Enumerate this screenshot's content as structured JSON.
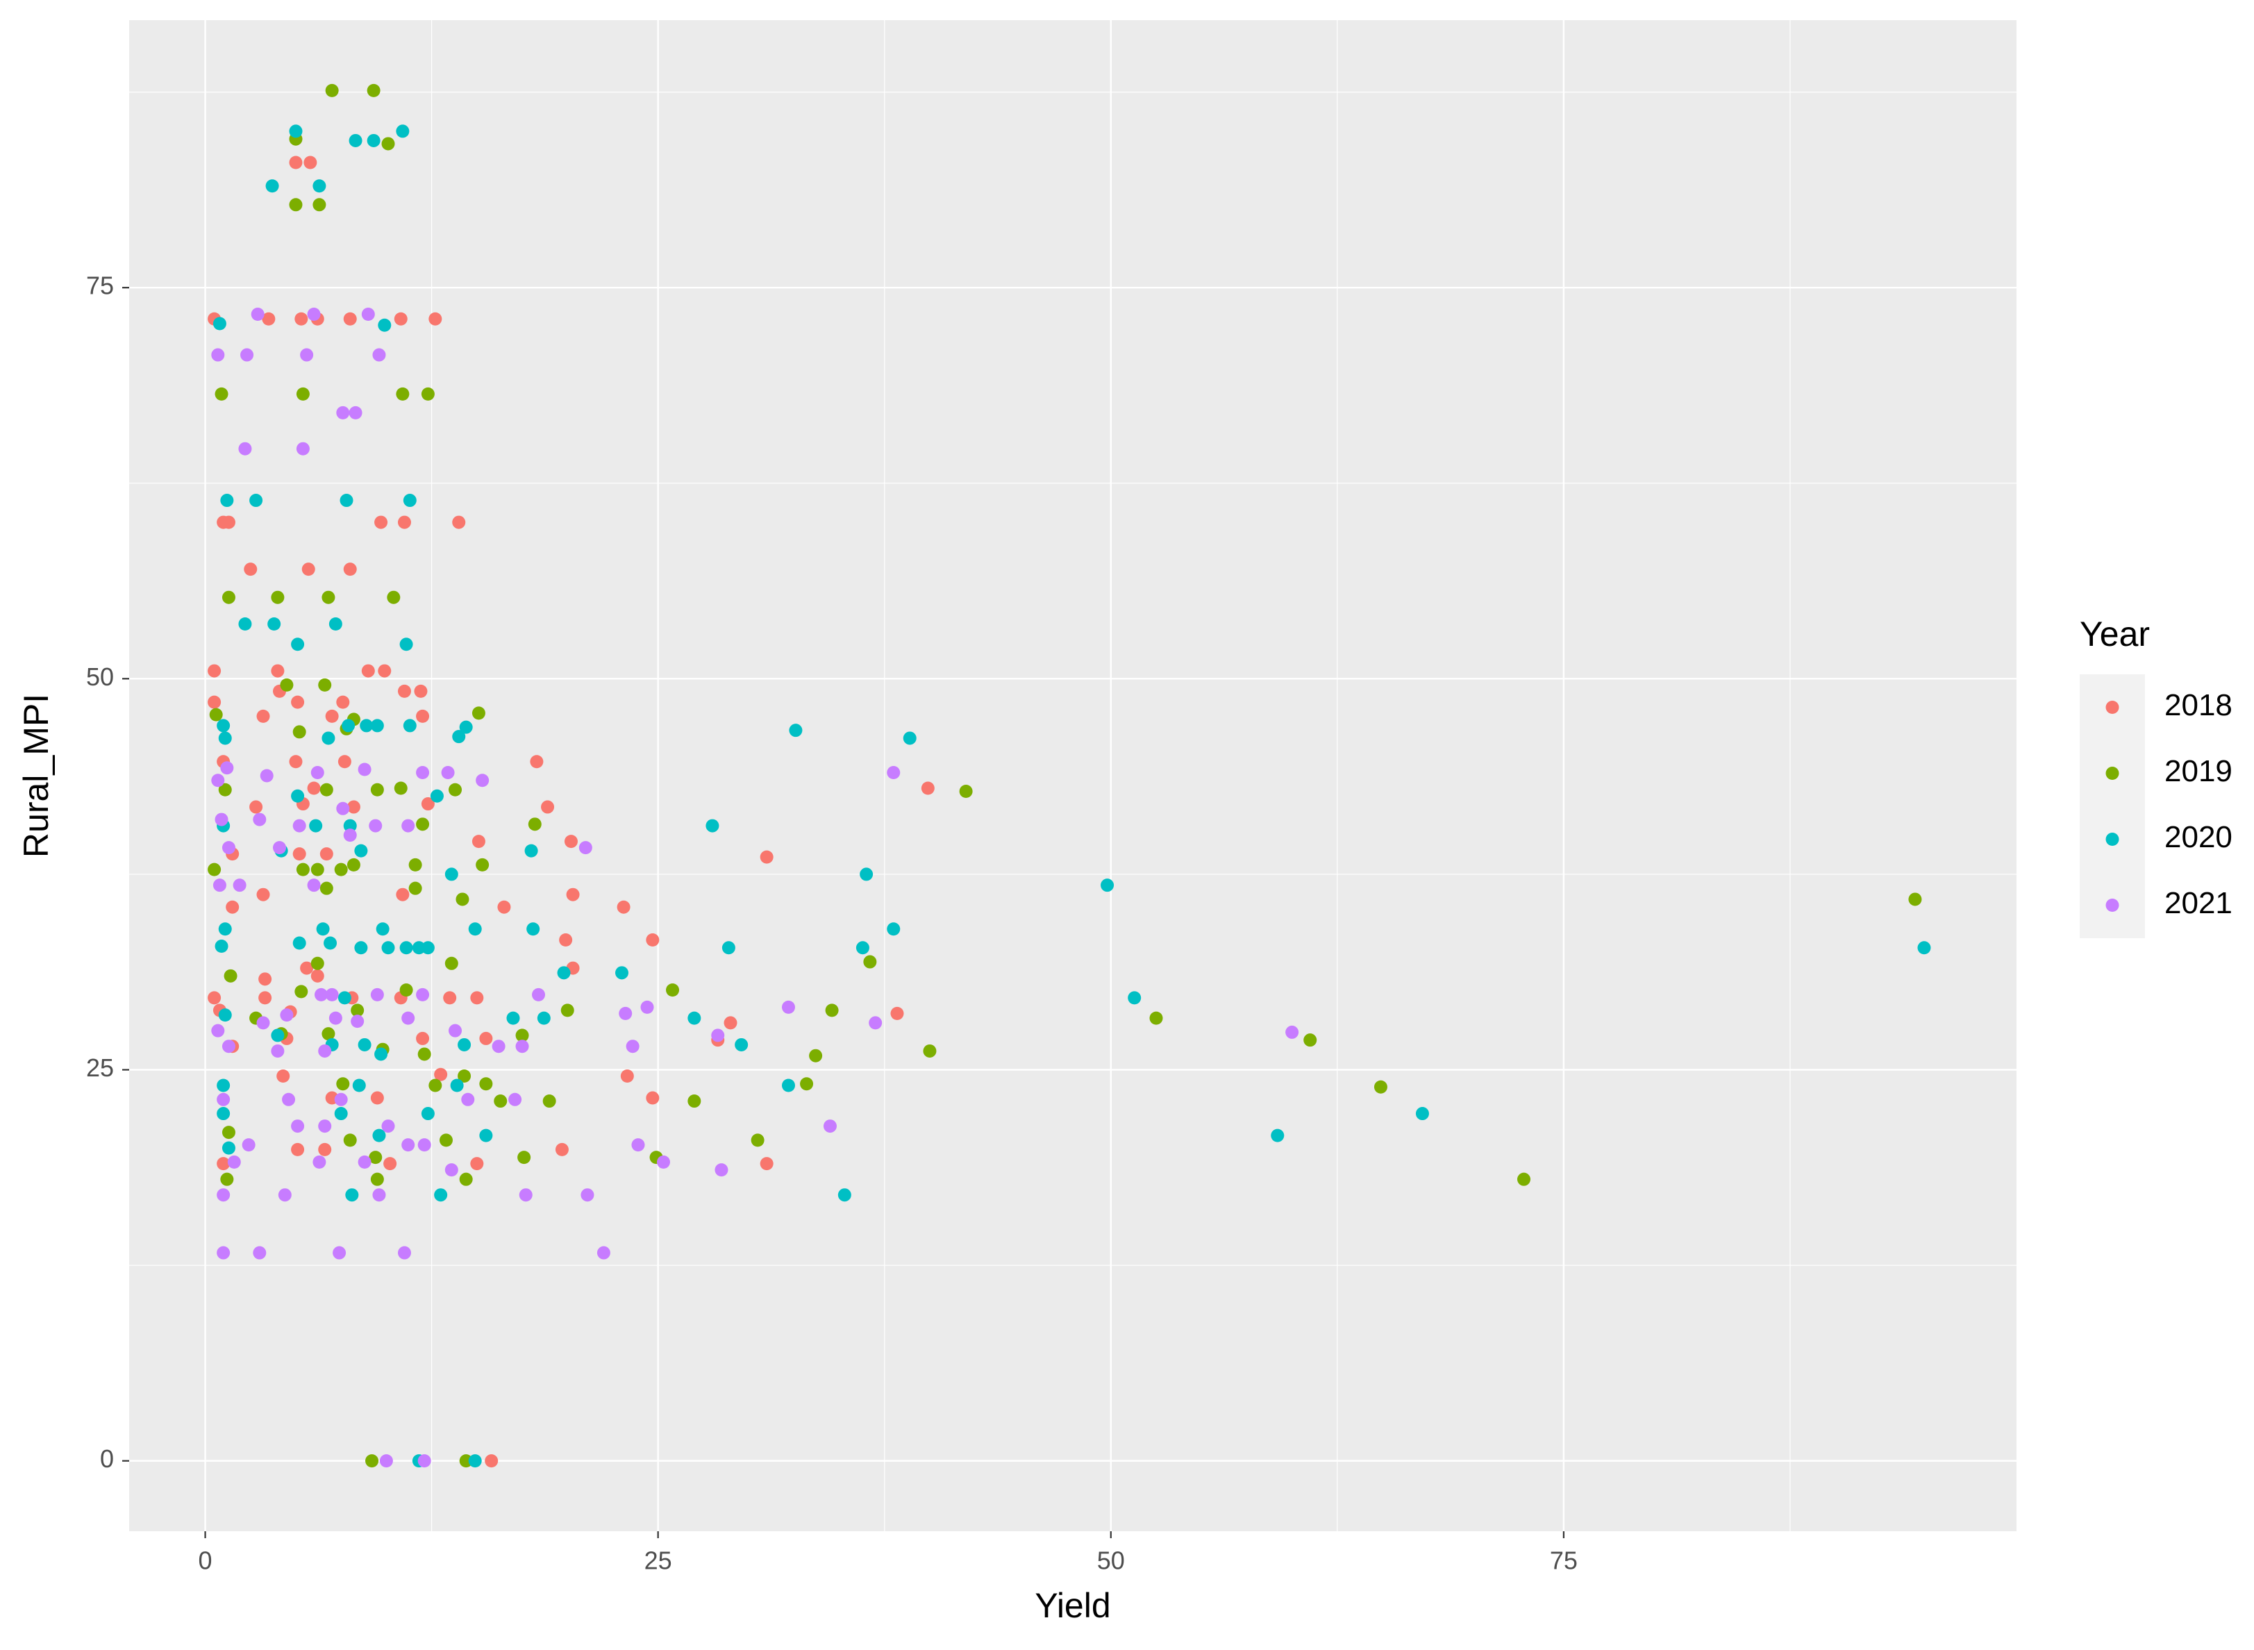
{
  "chart_data": {
    "type": "scatter",
    "x_label": "Yield",
    "y_label": "Rural_MPI",
    "legend_title": "Year",
    "legend": "right",
    "grid": true,
    "xlim": [
      -4.2,
      100
    ],
    "ylim": [
      -4.5,
      92.1
    ],
    "xticks": [
      0,
      25,
      50,
      75
    ],
    "yticks": [
      0,
      25,
      50,
      75
    ],
    "xminor": [
      12.5,
      37.5,
      62.5,
      87.5
    ],
    "yminor": [
      12.5,
      37.5,
      62.5,
      87.5
    ],
    "series": [
      {
        "name": "2018",
        "color": "#F8766D",
        "x": [
          0.5,
          3.5,
          5,
          5.8,
          5.3,
          6.2,
          8,
          10.8,
          12.7,
          1,
          1.3,
          9.7,
          11,
          14,
          2.5,
          5.7,
          8,
          0.5,
          4,
          9,
          9.9,
          0.5,
          5.1,
          7.6,
          3.2,
          7,
          12,
          11,
          11.9,
          4.1,
          1,
          5,
          7.7,
          18.3,
          39.9,
          6,
          2.8,
          5.4,
          8.2,
          12.3,
          18.9,
          15.1,
          20.2,
          31,
          1.5,
          5.2,
          6.7,
          3.2,
          20.3,
          10.9,
          16.5,
          23.1,
          1.5,
          24.7,
          19.9,
          20.3,
          5.6,
          6.2,
          3.3,
          0.5,
          3.3,
          8.1,
          10.8,
          13.5,
          15,
          38.2,
          29,
          4.7,
          0.8,
          28.3,
          15.5,
          4.5,
          1.5,
          12,
          4.3,
          13,
          23.3,
          7,
          9.5,
          24.7,
          5.1,
          6.6,
          19.7,
          1,
          10.2,
          15,
          31,
          15.8
        ],
        "values": [
          73,
          73,
          83,
          83,
          73,
          73,
          73,
          73,
          73,
          60,
          60,
          60,
          60,
          60,
          57,
          57,
          57,
          50.5,
          50.5,
          50.5,
          50.5,
          48.5,
          48.5,
          48.5,
          47.6,
          47.6,
          47.6,
          49.2,
          49.2,
          49.2,
          44.7,
          44.7,
          44.7,
          44.7,
          43,
          43,
          41.8,
          42,
          41.8,
          42,
          41.8,
          39.6,
          39.6,
          38.6,
          38.8,
          38.8,
          38.8,
          36.2,
          36.2,
          36.2,
          35.4,
          35.4,
          35.4,
          33.3,
          33.3,
          31.5,
          31.5,
          31,
          30.8,
          29.6,
          29.6,
          29.6,
          29.6,
          29.6,
          29.6,
          28.6,
          28,
          28.7,
          28.8,
          26.9,
          27,
          27,
          26.5,
          27,
          24.6,
          24.7,
          24.6,
          23.2,
          23.2,
          23.2,
          19.9,
          19.9,
          19.9,
          19,
          19,
          19,
          19,
          0
        ]
      },
      {
        "name": "2019",
        "color": "#7CAE00",
        "x": [
          7,
          9.3,
          5,
          10.1,
          5,
          6.3,
          0.9,
          5.4,
          10.9,
          12.3,
          1.3,
          4,
          6.8,
          10.4,
          4.5,
          6.6,
          0.6,
          15.1,
          8.2,
          5.2,
          7.8,
          10.8,
          1.1,
          9.5,
          6.7,
          13.8,
          42,
          12,
          18.2,
          8.2,
          11.6,
          15.3,
          0.5,
          5.4,
          6.2,
          7.5,
          11.6,
          6.7,
          14.2,
          94.4,
          36.7,
          13.6,
          6.2,
          1.4,
          25.8,
          5.3,
          11.1,
          34.6,
          52.5,
          20,
          8.4,
          2.8,
          4.2,
          6.8,
          17.5,
          61,
          40,
          9.8,
          12.1,
          33.7,
          14.3,
          15.5,
          33.2,
          7.6,
          12.7,
          64.9,
          16.3,
          19,
          27,
          1.3,
          8,
          13.3,
          30.5,
          9.4,
          17.6,
          24.9,
          1.2,
          9.5,
          14.4,
          72.8,
          9.2,
          14.4
        ],
        "values": [
          87.6,
          87.6,
          84.5,
          84.2,
          80.3,
          80.3,
          68.2,
          68.2,
          68.2,
          68.2,
          55.2,
          55.2,
          55.2,
          55.2,
          49.6,
          49.6,
          47.7,
          47.8,
          47.4,
          46.6,
          46.8,
          43,
          42.9,
          42.9,
          42.9,
          42.9,
          42.8,
          40.7,
          40.7,
          38.1,
          38.1,
          38.1,
          37.8,
          37.8,
          37.8,
          37.8,
          36.6,
          36.6,
          35.9,
          35.9,
          31.9,
          31.8,
          31.8,
          31,
          30.1,
          30,
          30.1,
          28.8,
          28.3,
          28.8,
          28.8,
          28.3,
          27.3,
          27.3,
          27.2,
          26.9,
          26.2,
          26.3,
          26,
          25.9,
          24.6,
          24.1,
          24.1,
          24.1,
          24,
          23.9,
          23,
          23,
          23,
          21,
          20.5,
          20.5,
          20.5,
          19.4,
          19.4,
          19.4,
          18,
          18,
          18,
          18,
          0,
          0
        ]
      },
      {
        "name": "2020",
        "color": "#00BFC4",
        "x": [
          5,
          8.3,
          9.3,
          10.9,
          3.7,
          6.3,
          0.8,
          9.9,
          1.2,
          2.8,
          7.8,
          11.3,
          2.2,
          3.8,
          7.2,
          5.1,
          11.1,
          1,
          7.9,
          8.9,
          9.5,
          11.3,
          14.4,
          32.6,
          38.9,
          6.8,
          14,
          1.1,
          5.1,
          12.8,
          28,
          1,
          6.1,
          8,
          4.2,
          8.6,
          18,
          36.5,
          13.6,
          49.8,
          1.1,
          6.5,
          9.8,
          14.9,
          18.1,
          38,
          0.9,
          5.2,
          6.9,
          8.6,
          10.1,
          11.1,
          11.8,
          12.3,
          28.9,
          36.3,
          94.9,
          23,
          19.8,
          51.3,
          7.7,
          27,
          17,
          18.7,
          1.1,
          29.6,
          7,
          8.8,
          9.7,
          14.3,
          1,
          4,
          8.5,
          13.9,
          32.2,
          1,
          7.5,
          12.3,
          67.2,
          59.2,
          9.6,
          15.5,
          1.3,
          8.1,
          13,
          35.3,
          11.8,
          14.9
        ],
        "values": [
          85,
          84.4,
          84.4,
          85,
          81.5,
          81.5,
          72.7,
          72.6,
          61.4,
          61.4,
          61.4,
          61.4,
          53.5,
          53.5,
          53.5,
          52.2,
          52.2,
          47,
          47,
          47,
          47,
          47,
          46.9,
          46.7,
          46.2,
          46.2,
          46.3,
          46.2,
          42.5,
          42.5,
          40.6,
          40.6,
          40.6,
          40.6,
          39,
          39,
          39,
          37.5,
          37.5,
          36.8,
          34,
          34,
          34,
          34,
          34,
          34,
          32.9,
          33.1,
          33.1,
          32.8,
          32.8,
          32.8,
          32.8,
          32.8,
          32.8,
          32.8,
          32.8,
          31.2,
          31.2,
          29.6,
          29.6,
          28.3,
          28.3,
          28.3,
          28.5,
          26.6,
          26.6,
          26.6,
          26,
          26.6,
          24,
          27.2,
          24,
          24,
          24,
          22.2,
          22.2,
          22.2,
          22.2,
          20.8,
          20.8,
          20.8,
          20,
          17,
          17,
          17,
          0,
          0
        ]
      },
      {
        "name": "2021",
        "color": "#C77CFF",
        "x": [
          2.9,
          6,
          9,
          0.7,
          2.3,
          5.6,
          9.6,
          7.6,
          8.3,
          2.2,
          5.4,
          0.7,
          1.2,
          3.4,
          6.2,
          8.8,
          12,
          13.4,
          15.3,
          38,
          0.9,
          3,
          5.2,
          7.6,
          9.4,
          11.2,
          21,
          1.3,
          4.1,
          8,
          6,
          1.9,
          0.8,
          6.4,
          7,
          8.4,
          9.5,
          12,
          18.4,
          32.2,
          24.4,
          23.2,
          37,
          0.7,
          3.2,
          4.5,
          7.2,
          11.2,
          13.8,
          28.3,
          60,
          16.2,
          17.5,
          23.6,
          1.3,
          4,
          6.6,
          4.6,
          7.5,
          14.5,
          17.1,
          1,
          5.1,
          6.6,
          10.1,
          34.5,
          2.4,
          11.2,
          12.1,
          23.9,
          1.6,
          6.3,
          8.8,
          25.3,
          28.5,
          13.6,
          1,
          4.4,
          9.6,
          17.7,
          21.1,
          1,
          3,
          7.4,
          11,
          22,
          10,
          12.1
        ],
        "values": [
          73.3,
          73.3,
          73.3,
          70.7,
          70.7,
          70.7,
          70.7,
          67,
          67,
          64.7,
          64.7,
          43.5,
          44.3,
          43.8,
          44,
          44.2,
          44,
          44,
          43.5,
          44,
          41,
          41,
          40.6,
          41.7,
          40.6,
          40.6,
          39.2,
          39.2,
          39.2,
          40,
          36.8,
          36.8,
          36.8,
          29.8,
          29.8,
          28.1,
          29.8,
          29.8,
          29.8,
          29,
          29,
          28.6,
          28,
          27.5,
          28,
          28.5,
          28.3,
          28.3,
          27.5,
          27.2,
          27.4,
          26.5,
          26.5,
          26.5,
          26.5,
          26.2,
          26.2,
          23.1,
          23.1,
          23.1,
          23.1,
          23.1,
          21.4,
          21.4,
          21.4,
          21.4,
          20.2,
          20.2,
          20.2,
          20.2,
          19.1,
          19.1,
          19.1,
          19.1,
          18.6,
          18.6,
          17,
          17,
          17,
          17,
          17,
          13.3,
          13.3,
          13.3,
          13.3,
          13.3,
          0,
          0
        ]
      }
    ]
  }
}
